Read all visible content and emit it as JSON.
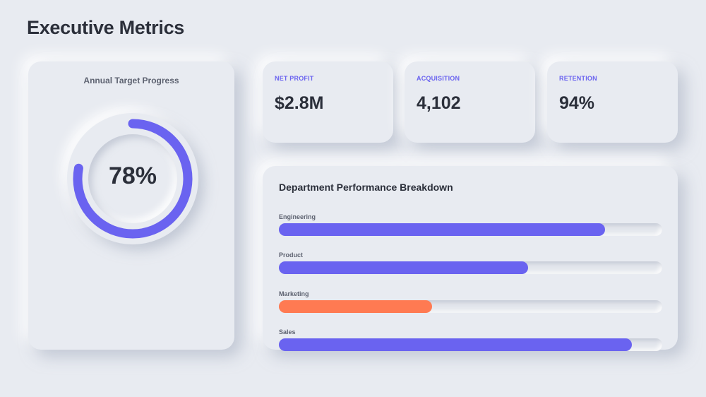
{
  "header": {
    "title": "Executive Metrics"
  },
  "target": {
    "title": "Annual Target Progress",
    "value_label": "78%",
    "progress": 0.78,
    "ring_color": "#6a63f0"
  },
  "kpis": [
    {
      "label": "NET PROFIT",
      "value": "$2.8M"
    },
    {
      "label": "ACQUISITION",
      "value": "4,102"
    },
    {
      "label": "RETENTION",
      "value": "94%"
    }
  ],
  "departments": {
    "title": "Department Performance Breakdown",
    "items": [
      {
        "label": "Engineering",
        "level": 0.85,
        "color": "#6a63f0"
      },
      {
        "label": "Product",
        "level": 0.65,
        "color": "#6a63f0"
      },
      {
        "label": "Marketing",
        "level": 0.4,
        "color": "#ff7a52"
      },
      {
        "label": "Sales",
        "level": 0.92,
        "color": "#6a63f0"
      }
    ]
  }
}
